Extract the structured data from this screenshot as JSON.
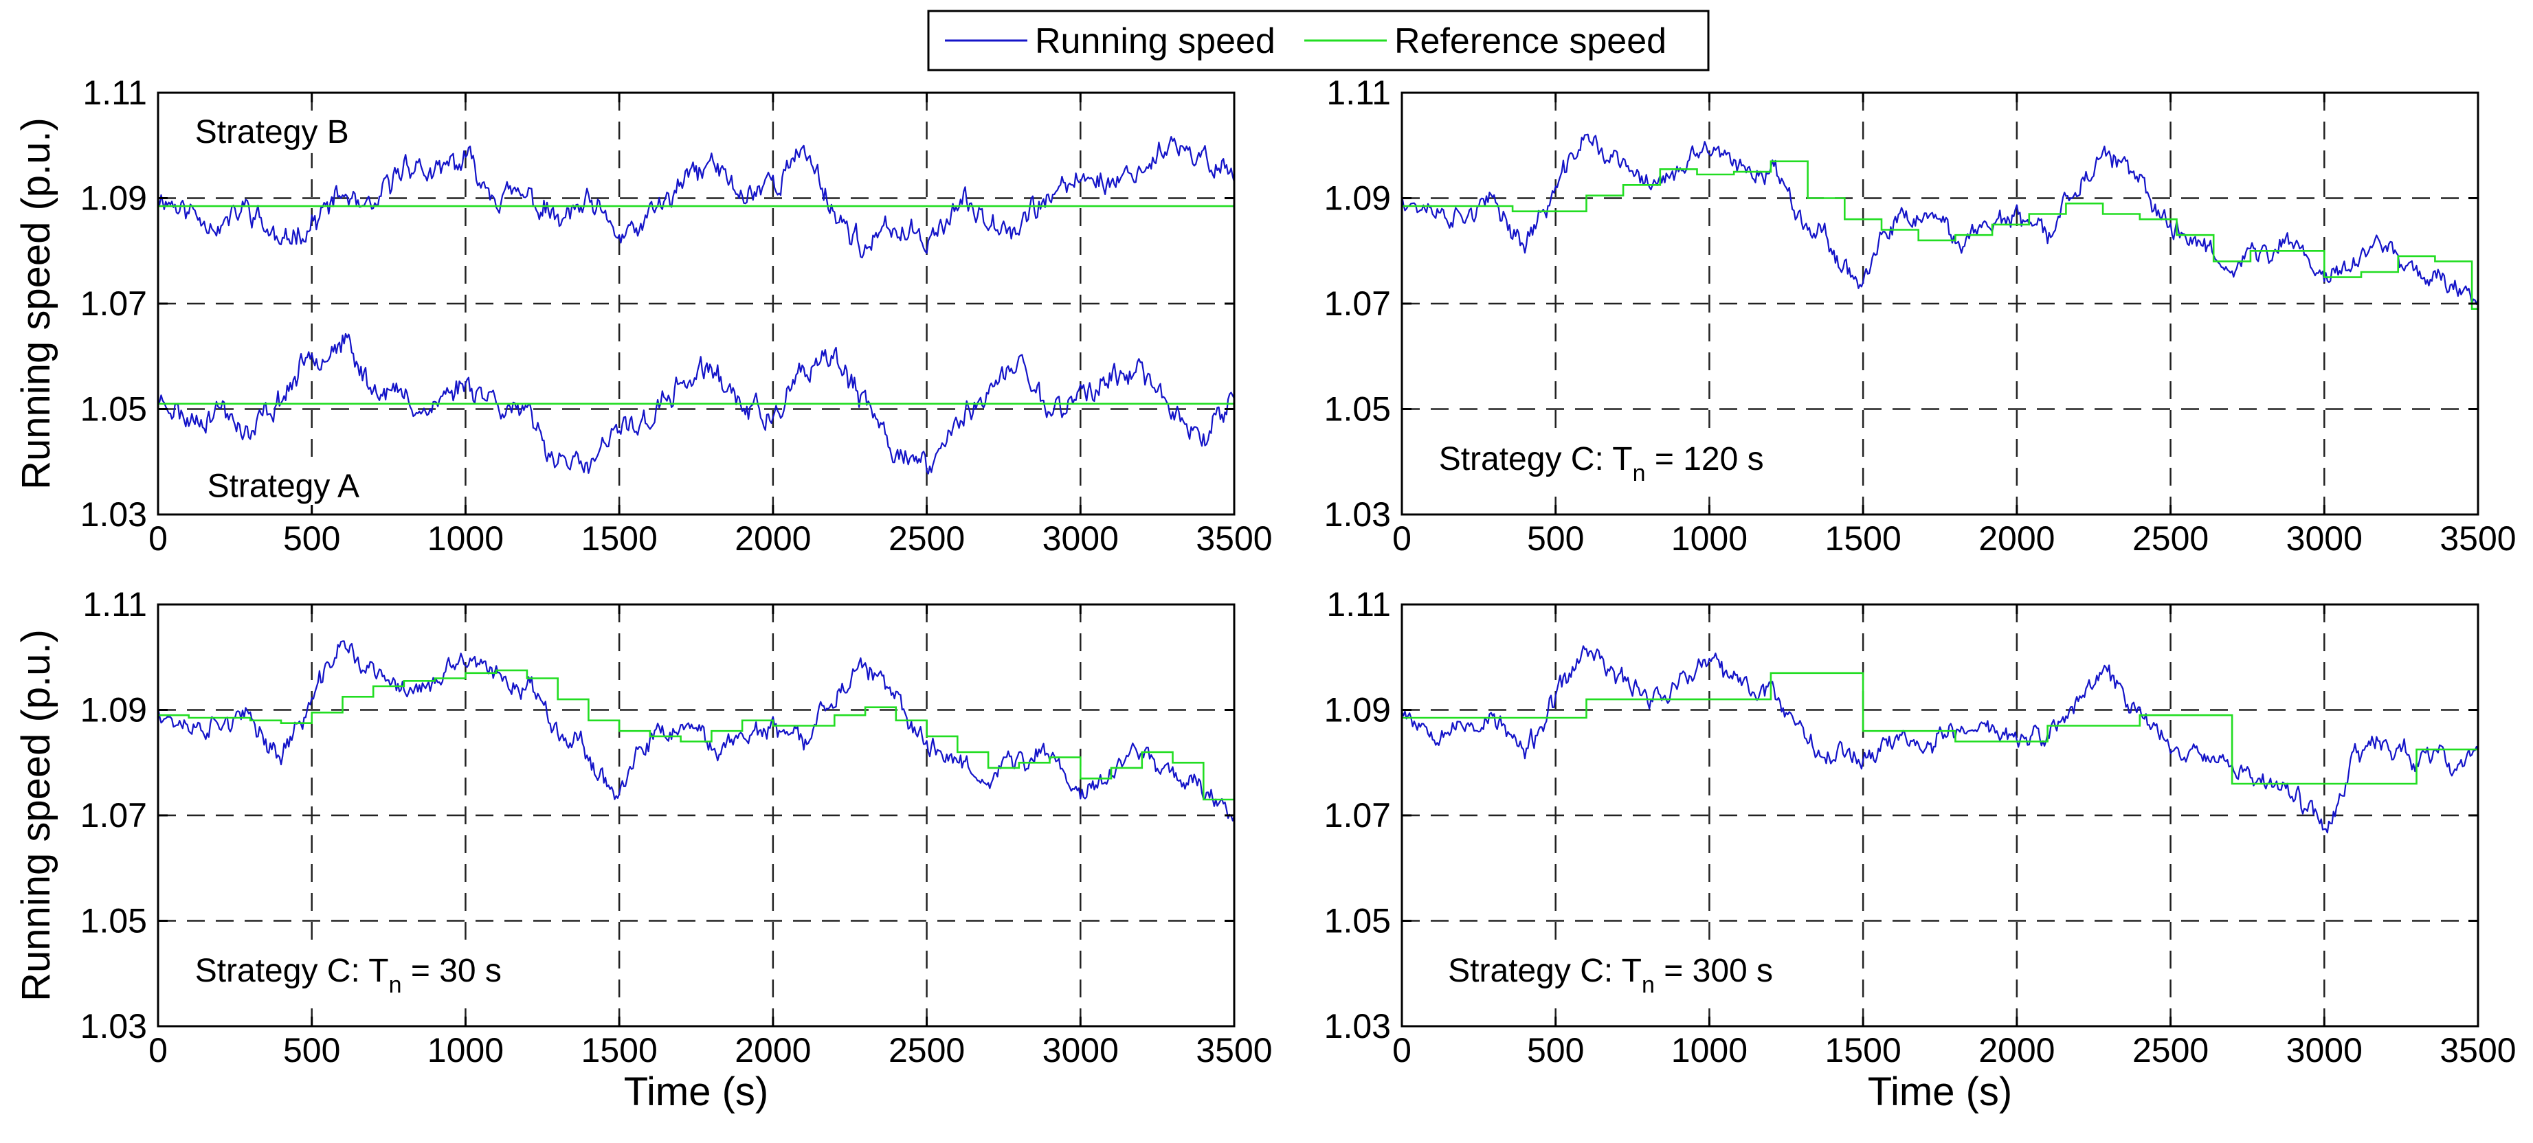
{
  "legend": {
    "entries": [
      {
        "label": "Running speed",
        "color": "#0000cc"
      },
      {
        "label": "Reference speed",
        "color": "#00dd00"
      }
    ]
  },
  "colors": {
    "running": "#1414c8",
    "reference": "#22dd22",
    "grid": "#222222",
    "axis": "#000000"
  },
  "chart_data": [
    {
      "type": "line",
      "panel": "top-left",
      "title": "",
      "xlabel": "",
      "ylabel": "Running speed (p.u.)",
      "xlim": [
        0,
        3500
      ],
      "ylim": [
        1.03,
        1.11
      ],
      "xticks": [
        "0",
        "500",
        "1000",
        "1500",
        "2000",
        "2500",
        "3000",
        "3500"
      ],
      "yticks": [
        "1.03",
        "1.05",
        "1.07",
        "1.09",
        "1.11"
      ],
      "annotations": [
        {
          "text": "Strategy B",
          "sub": "",
          "after": "",
          "x": 120,
          "y": 1.1005
        },
        {
          "text": "Strategy A",
          "sub": "",
          "after": "",
          "x": 160,
          "y": 1.0333
        }
      ],
      "series": [
        {
          "name": "Running speed (Strategy B)",
          "kind": "running",
          "x": [
            0,
            100,
            200,
            300,
            400,
            500,
            600,
            700,
            800,
            900,
            1000,
            1100,
            1200,
            1300,
            1400,
            1500,
            1600,
            1700,
            1800,
            1900,
            2000,
            2100,
            2200,
            2300,
            2400,
            2500,
            2600,
            2700,
            2800,
            2900,
            3000,
            3100,
            3200,
            3300,
            3400,
            3500
          ],
          "values": [
            1.091,
            1.088,
            1.085,
            1.089,
            1.081,
            1.086,
            1.09,
            1.087,
            1.097,
            1.094,
            1.097,
            1.092,
            1.09,
            1.085,
            1.088,
            1.082,
            1.086,
            1.092,
            1.097,
            1.09,
            1.093,
            1.099,
            1.088,
            1.08,
            1.084,
            1.083,
            1.089,
            1.086,
            1.085,
            1.09,
            1.094,
            1.093,
            1.096,
            1.099,
            1.097,
            1.095
          ],
          "amp": 0.0035,
          "seed": 11
        },
        {
          "name": "Reference speed (Strategy B)",
          "kind": "reference",
          "step": false,
          "x": [
            0,
            3500
          ],
          "values": [
            1.0885,
            1.0885
          ]
        },
        {
          "name": "Running speed (Strategy A)",
          "kind": "running",
          "x": [
            0,
            100,
            200,
            300,
            400,
            500,
            600,
            700,
            800,
            900,
            1000,
            1100,
            1200,
            1300,
            1400,
            1500,
            1600,
            1700,
            1800,
            1900,
            2000,
            2100,
            2200,
            2300,
            2400,
            2500,
            2600,
            2700,
            2800,
            2900,
            3000,
            3100,
            3200,
            3300,
            3400,
            3500
          ],
          "values": [
            1.052,
            1.048,
            1.05,
            1.044,
            1.052,
            1.06,
            1.064,
            1.054,
            1.052,
            1.05,
            1.056,
            1.052,
            1.048,
            1.042,
            1.038,
            1.046,
            1.048,
            1.054,
            1.058,
            1.052,
            1.048,
            1.056,
            1.06,
            1.05,
            1.042,
            1.04,
            1.046,
            1.054,
            1.058,
            1.05,
            1.052,
            1.056,
            1.058,
            1.048,
            1.046,
            1.054
          ],
          "amp": 0.0035,
          "seed": 23
        },
        {
          "name": "Reference speed (Strategy A)",
          "kind": "reference",
          "step": false,
          "x": [
            0,
            3500
          ],
          "values": [
            1.051,
            1.051
          ]
        }
      ]
    },
    {
      "type": "line",
      "panel": "top-right",
      "title": "",
      "xlabel": "",
      "ylabel": "",
      "xlim": [
        0,
        3500
      ],
      "ylim": [
        1.03,
        1.11
      ],
      "xticks": [
        "0",
        "500",
        "1000",
        "1500",
        "2000",
        "2500",
        "3000",
        "3500"
      ],
      "yticks": [
        "1.03",
        "1.05",
        "1.07",
        "1.09",
        "1.11"
      ],
      "annotations": [
        {
          "text": "Strategy C: T",
          "sub": "n",
          "after": " = 120 s",
          "x": 120,
          "y": 1.0385
        }
      ],
      "series": [
        {
          "name": "Running speed",
          "kind": "running",
          "x": [
            0,
            100,
            200,
            300,
            400,
            500,
            600,
            700,
            800,
            900,
            1000,
            1100,
            1200,
            1300,
            1400,
            1500,
            1600,
            1700,
            1800,
            1900,
            2000,
            2100,
            2200,
            2300,
            2400,
            2500,
            2600,
            2700,
            2800,
            2900,
            3000,
            3100,
            3200,
            3300,
            3400,
            3500
          ],
          "values": [
            1.091,
            1.087,
            1.086,
            1.089,
            1.081,
            1.092,
            1.102,
            1.097,
            1.093,
            1.094,
            1.099,
            1.095,
            1.096,
            1.088,
            1.08,
            1.074,
            1.084,
            1.086,
            1.082,
            1.086,
            1.086,
            1.083,
            1.093,
            1.097,
            1.092,
            1.085,
            1.082,
            1.078,
            1.079,
            1.082,
            1.076,
            1.078,
            1.082,
            1.076,
            1.074,
            1.072
          ],
          "amp": 0.003,
          "seed": 37
        },
        {
          "name": "Reference speed",
          "kind": "reference",
          "step": true,
          "x": [
            0,
            120,
            240,
            360,
            480,
            600,
            720,
            840,
            960,
            1080,
            1200,
            1320,
            1440,
            1560,
            1680,
            1800,
            1920,
            2040,
            2160,
            2280,
            2400,
            2520,
            2640,
            2760,
            2880,
            3000,
            3120,
            3240,
            3360,
            3480,
            3500
          ],
          "values": [
            1.0885,
            1.0885,
            1.0885,
            1.0875,
            1.0875,
            1.0905,
            1.0925,
            1.0955,
            1.0945,
            1.095,
            1.097,
            1.09,
            1.086,
            1.084,
            1.082,
            1.083,
            1.085,
            1.087,
            1.089,
            1.087,
            1.086,
            1.083,
            1.078,
            1.08,
            1.08,
            1.075,
            1.076,
            1.079,
            1.078,
            1.069,
            1.069
          ]
        }
      ]
    },
    {
      "type": "line",
      "panel": "bottom-left",
      "title": "",
      "xlabel": "Time (s)",
      "ylabel": "Running speed (p.u.)",
      "xlim": [
        0,
        3500
      ],
      "ylim": [
        1.03,
        1.11
      ],
      "xticks": [
        "0",
        "500",
        "1000",
        "1500",
        "2000",
        "2500",
        "3000",
        "3500"
      ],
      "yticks": [
        "1.03",
        "1.05",
        "1.07",
        "1.09",
        "1.11"
      ],
      "annotations": [
        {
          "text": "Strategy C: T",
          "sub": "n",
          "after": " = 30 s",
          "x": 120,
          "y": 1.0385
        }
      ],
      "series": [
        {
          "name": "Running speed",
          "kind": "running",
          "x": [
            0,
            100,
            200,
            300,
            400,
            500,
            600,
            700,
            800,
            900,
            1000,
            1100,
            1200,
            1300,
            1400,
            1500,
            1600,
            1700,
            1800,
            1900,
            2000,
            2100,
            2200,
            2300,
            2400,
            2500,
            2600,
            2700,
            2800,
            2900,
            3000,
            3100,
            3200,
            3300,
            3400,
            3500
          ],
          "values": [
            1.091,
            1.086,
            1.087,
            1.088,
            1.081,
            1.092,
            1.103,
            1.097,
            1.094,
            1.094,
            1.099,
            1.096,
            1.095,
            1.088,
            1.081,
            1.074,
            1.083,
            1.086,
            1.083,
            1.086,
            1.086,
            1.084,
            1.093,
            1.097,
            1.091,
            1.084,
            1.081,
            1.078,
            1.08,
            1.082,
            1.075,
            1.078,
            1.083,
            1.078,
            1.075,
            1.071
          ],
          "amp": 0.003,
          "seed": 37
        },
        {
          "name": "Reference speed",
          "kind": "reference",
          "step": true,
          "x": [
            0,
            100,
            200,
            300,
            400,
            500,
            600,
            700,
            800,
            900,
            1000,
            1100,
            1200,
            1300,
            1400,
            1500,
            1600,
            1700,
            1800,
            1900,
            2000,
            2100,
            2200,
            2300,
            2400,
            2500,
            2600,
            2700,
            2800,
            2900,
            3000,
            3100,
            3200,
            3300,
            3400,
            3500
          ],
          "values": [
            1.089,
            1.0885,
            1.0885,
            1.088,
            1.0875,
            1.0895,
            1.0925,
            1.0945,
            1.0955,
            1.096,
            1.097,
            1.0975,
            1.096,
            1.092,
            1.088,
            1.086,
            1.085,
            1.084,
            1.086,
            1.088,
            1.087,
            1.087,
            1.089,
            1.0905,
            1.088,
            1.085,
            1.082,
            1.079,
            1.08,
            1.081,
            1.077,
            1.079,
            1.082,
            1.08,
            1.073,
            1.07
          ]
        }
      ]
    },
    {
      "type": "line",
      "panel": "bottom-right",
      "title": "",
      "xlabel": "Time (s)",
      "ylabel": "",
      "xlim": [
        0,
        3500
      ],
      "ylim": [
        1.03,
        1.11
      ],
      "xticks": [
        "0",
        "500",
        "1000",
        "1500",
        "2000",
        "2500",
        "3000",
        "3500"
      ],
      "yticks": [
        "1.03",
        "1.05",
        "1.07",
        "1.09",
        "1.11"
      ],
      "annotations": [
        {
          "text": "Strategy C: T",
          "sub": "n",
          "after": " = 300 s",
          "x": 150,
          "y": 1.0385
        }
      ],
      "series": [
        {
          "name": "Running speed",
          "kind": "running",
          "x": [
            0,
            100,
            200,
            300,
            400,
            500,
            600,
            700,
            800,
            900,
            1000,
            1100,
            1200,
            1300,
            1400,
            1500,
            1600,
            1700,
            1800,
            1900,
            2000,
            2100,
            2200,
            2300,
            2400,
            2500,
            2600,
            2700,
            2800,
            2900,
            3000,
            3100,
            3200,
            3300,
            3400,
            3500
          ],
          "values": [
            1.091,
            1.087,
            1.086,
            1.089,
            1.081,
            1.092,
            1.102,
            1.097,
            1.093,
            1.094,
            1.099,
            1.094,
            1.094,
            1.087,
            1.082,
            1.081,
            1.085,
            1.084,
            1.086,
            1.087,
            1.084,
            1.085,
            1.091,
            1.097,
            1.089,
            1.084,
            1.083,
            1.079,
            1.077,
            1.073,
            1.068,
            1.081,
            1.084,
            1.08,
            1.08,
            1.082
          ],
          "amp": 0.003,
          "seed": 53
        },
        {
          "name": "Reference speed",
          "kind": "reference",
          "step": true,
          "x": [
            0,
            300,
            600,
            900,
            1200,
            1500,
            1800,
            2100,
            2400,
            2700,
            3000,
            3300,
            3500
          ],
          "values": [
            1.0885,
            1.0885,
            1.092,
            1.092,
            1.097,
            1.086,
            1.084,
            1.087,
            1.089,
            1.076,
            1.076,
            1.0825,
            1.0825
          ]
        }
      ]
    }
  ]
}
